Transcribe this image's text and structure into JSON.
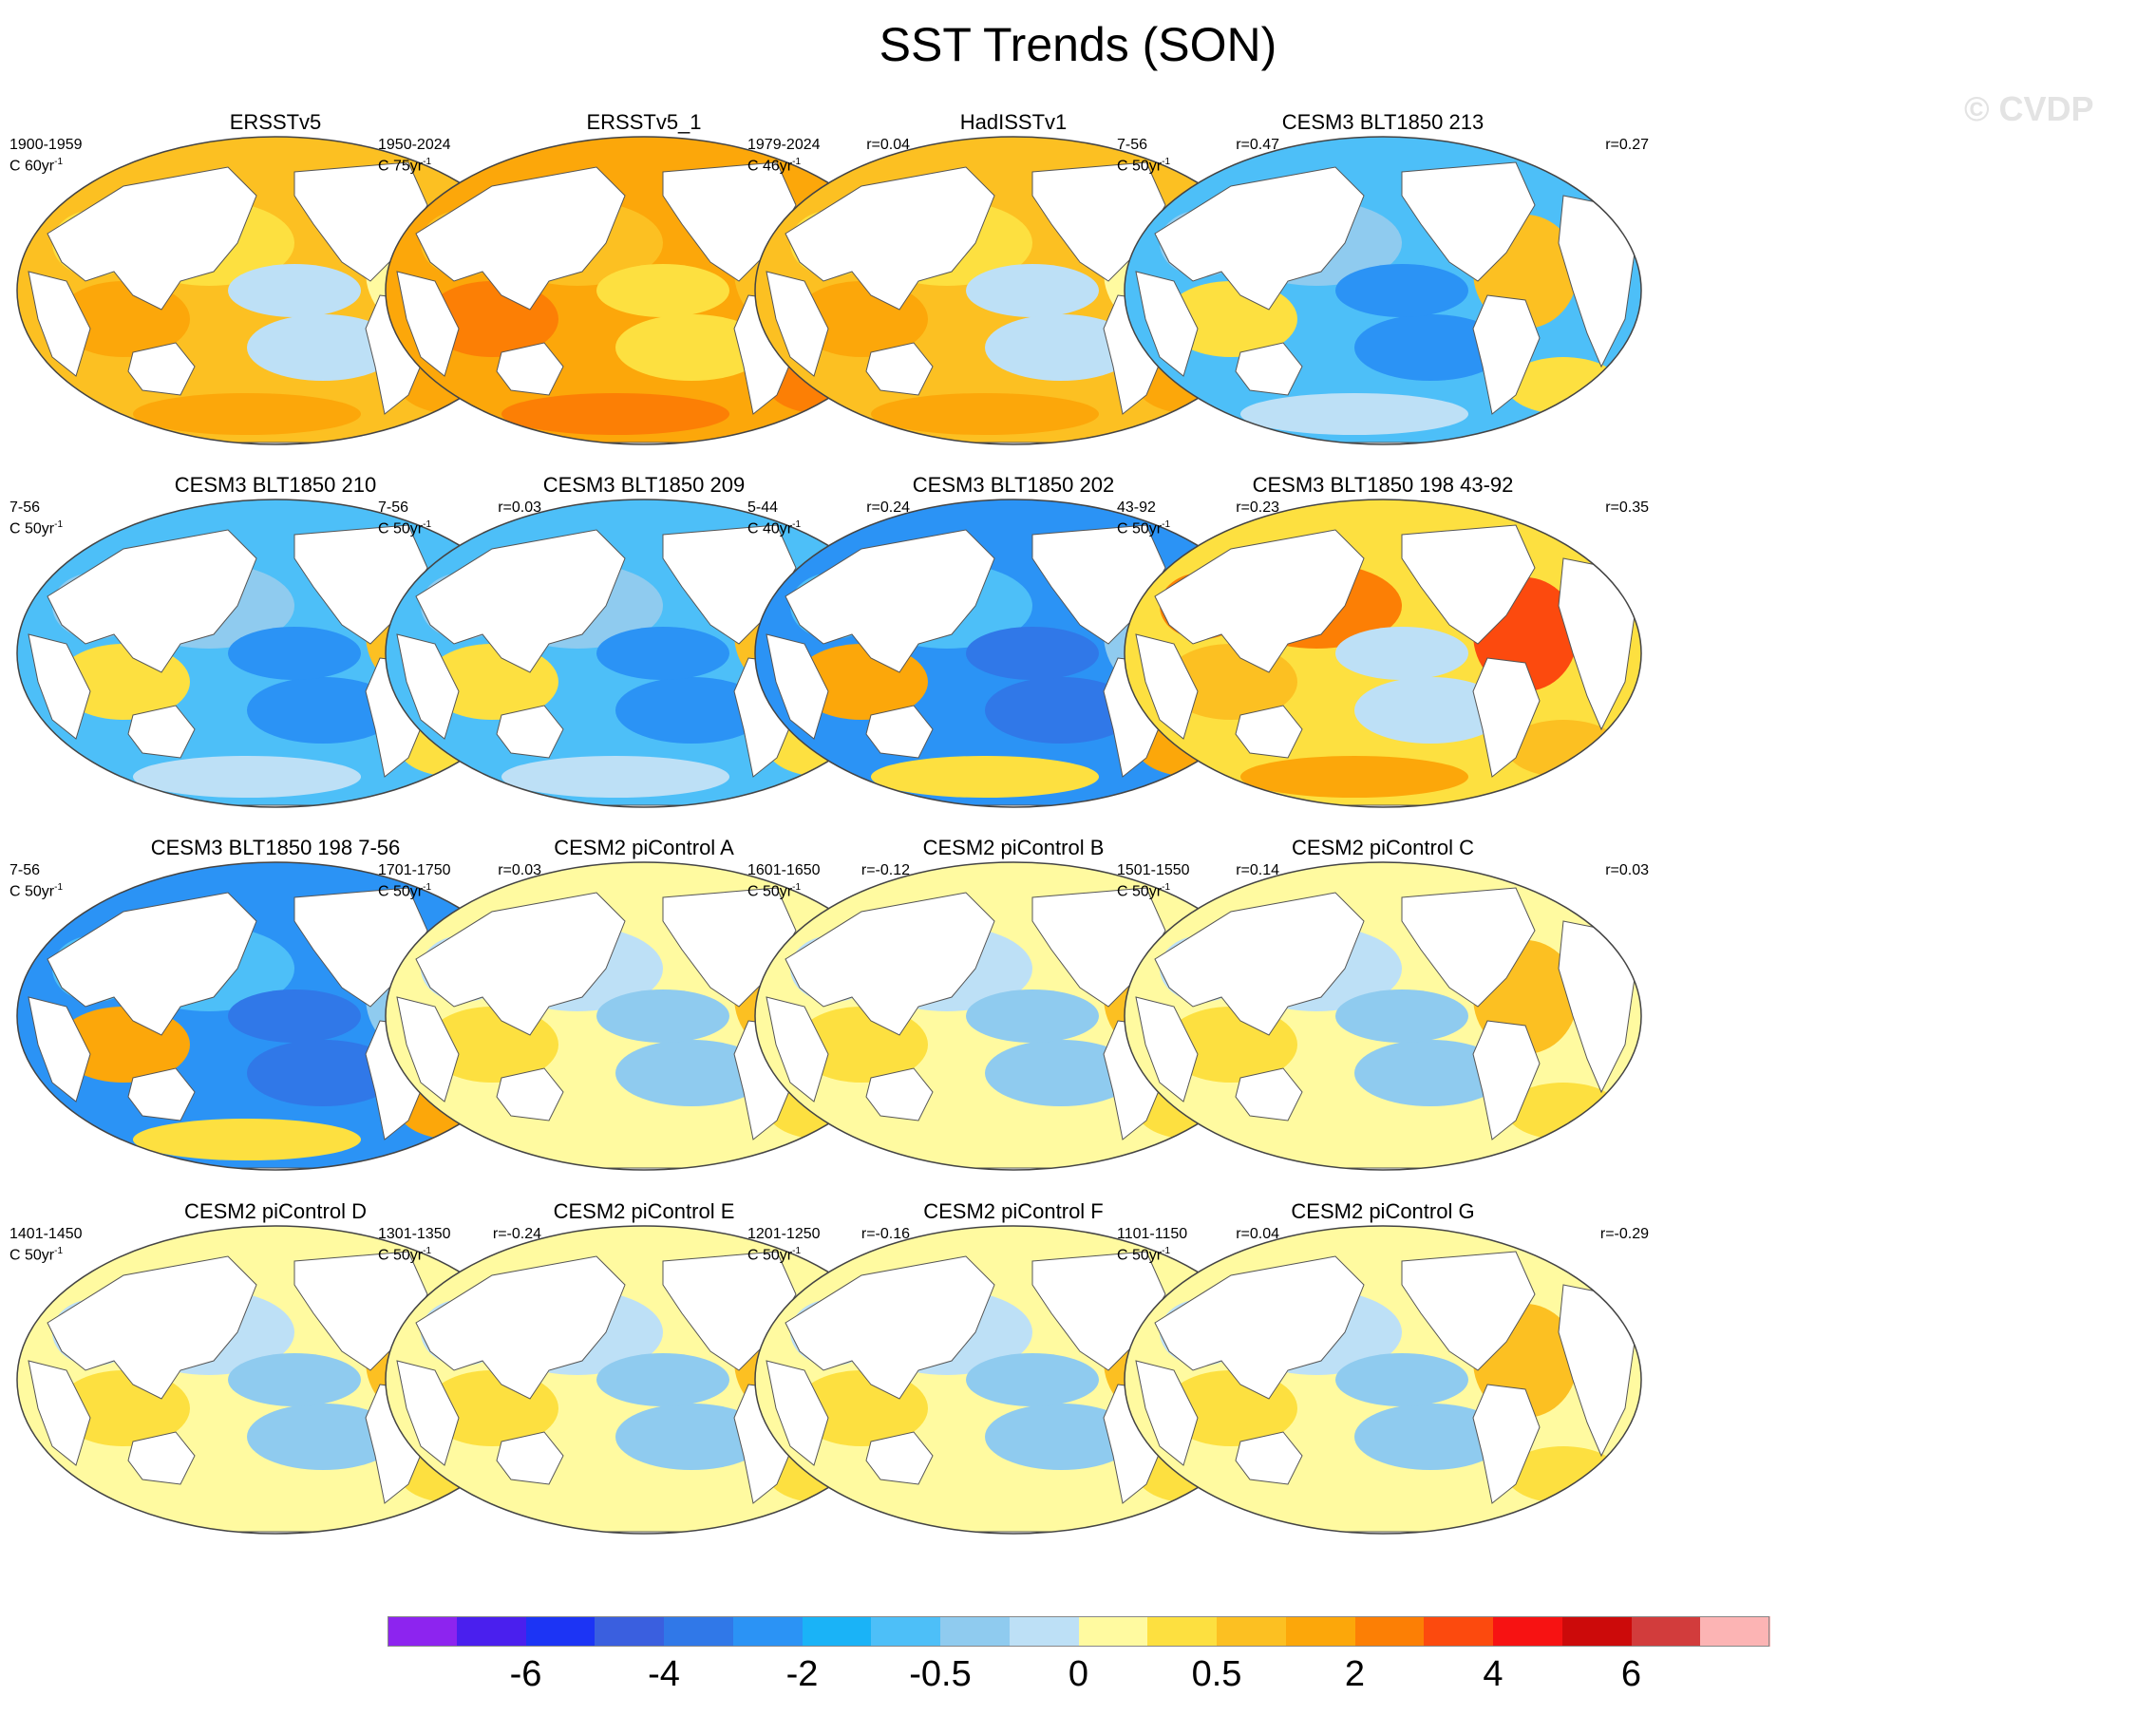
{
  "title": "SST Trends (SON)",
  "watermark": "© CVDP",
  "panels": [
    {
      "title": "ERSSTv5",
      "period": "1900-1959",
      "rate": "C 60yr",
      "rate_exp": "-1",
      "corr": "",
      "style": "warm"
    },
    {
      "title": "ERSSTv5_1",
      "period": "1950-2024",
      "rate": "C 75yr",
      "rate_exp": "-1",
      "corr": "r=0.04",
      "style": "warm2"
    },
    {
      "title": "HadISSTv1",
      "period": "1979-2024",
      "rate": "C 46yr",
      "rate_exp": "-1",
      "corr": "r=0.47",
      "style": "warm"
    },
    {
      "title": "CESM3 BLT1850 213",
      "period": "7-56",
      "rate": "C 50yr",
      "rate_exp": "-1",
      "corr": "r=0.27",
      "style": "cool"
    },
    {
      "title": "CESM3 BLT1850 210",
      "period": "7-56",
      "rate": "C 50yr",
      "rate_exp": "-1",
      "corr": "r=0.03",
      "style": "cool"
    },
    {
      "title": "CESM3 BLT1850 209",
      "period": "7-56",
      "rate": "C 50yr",
      "rate_exp": "-1",
      "corr": "r=0.24",
      "style": "cool"
    },
    {
      "title": "CESM3 BLT1850 202",
      "period": "5-44",
      "rate": "C 40yr",
      "rate_exp": "-1",
      "corr": "r=0.23",
      "style": "cool2"
    },
    {
      "title": "CESM3 BLT1850 198 43-92",
      "period": "43-92",
      "rate": "C 50yr",
      "rate_exp": "-1",
      "corr": "r=0.35",
      "style": "warm3"
    },
    {
      "title": "CESM3 BLT1850 198 7-56",
      "period": "7-56",
      "rate": "C 50yr",
      "rate_exp": "-1",
      "corr": "r=0.03",
      "style": "cool2"
    },
    {
      "title": "CESM2 piControl A",
      "period": "1701-1750",
      "rate": "C 50yr",
      "rate_exp": "-1",
      "corr": "r=-0.12",
      "style": "mild"
    },
    {
      "title": "CESM2 piControl B",
      "period": "1601-1650",
      "rate": "C 50yr",
      "rate_exp": "-1",
      "corr": "r=0.14",
      "style": "mild"
    },
    {
      "title": "CESM2 piControl C",
      "period": "1501-1550",
      "rate": "C 50yr",
      "rate_exp": "-1",
      "corr": "r=0.03",
      "style": "mild"
    },
    {
      "title": "CESM2 piControl D",
      "period": "1401-1450",
      "rate": "C 50yr",
      "rate_exp": "-1",
      "corr": "r=-0.24",
      "style": "mild"
    },
    {
      "title": "CESM2 piControl E",
      "period": "1301-1350",
      "rate": "C 50yr",
      "rate_exp": "-1",
      "corr": "r=-0.16",
      "style": "mild"
    },
    {
      "title": "CESM2 piControl F",
      "period": "1201-1250",
      "rate": "C 50yr",
      "rate_exp": "-1",
      "corr": "r=0.04",
      "style": "mild"
    },
    {
      "title": "CESM2 piControl G",
      "period": "1101-1150",
      "rate": "C 50yr",
      "rate_exp": "-1",
      "corr": "r=-0.29",
      "style": "mild"
    }
  ],
  "colorbar": {
    "colors": [
      "#8d24ef",
      "#4a1fee",
      "#1c34f5",
      "#3a5fdf",
      "#3078e8",
      "#2b93f5",
      "#1ab3f7",
      "#4dbff8",
      "#8fcbef",
      "#bde0f6",
      "#fffaa0",
      "#fde040",
      "#fcc022",
      "#fca70a",
      "#fc7f05",
      "#fc4a0e",
      "#f71212",
      "#cc0a0a",
      "#d23c3c",
      "#fcb4b4"
    ],
    "labels": [
      {
        "text": "-6",
        "boundary": 2
      },
      {
        "text": "-4",
        "boundary": 4
      },
      {
        "text": "-2",
        "boundary": 6
      },
      {
        "text": "-0.5",
        "boundary": 8
      },
      {
        "text": "0",
        "boundary": 10
      },
      {
        "text": "0.5",
        "boundary": 12
      },
      {
        "text": "2",
        "boundary": 14
      },
      {
        "text": "4",
        "boundary": 16
      },
      {
        "text": "6",
        "boundary": 18
      }
    ]
  }
}
